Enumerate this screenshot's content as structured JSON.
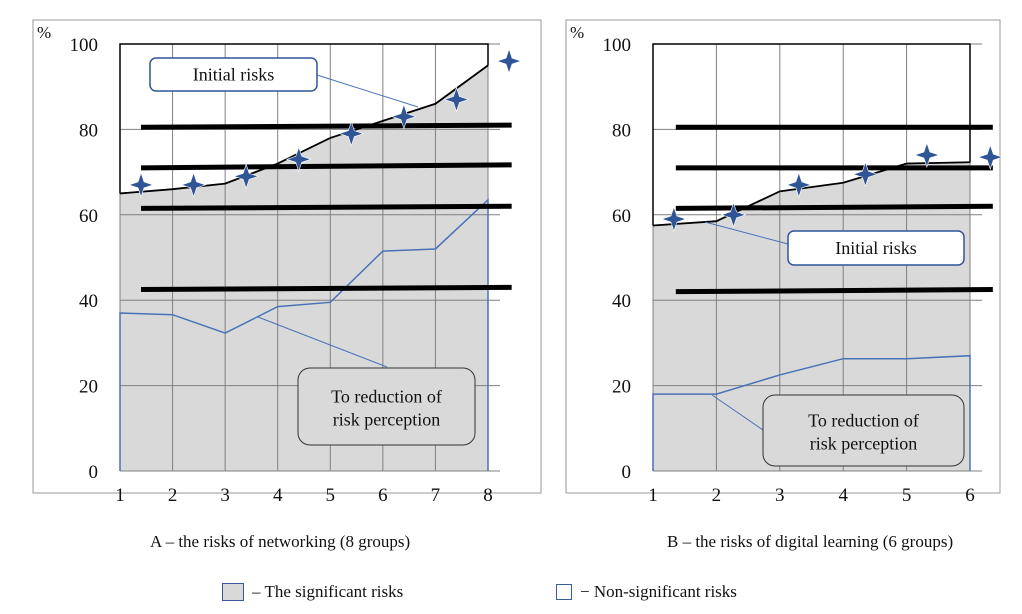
{
  "chart_data": [
    {
      "type": "area",
      "caption": "A – the risks of networking (8 groups)",
      "ylabel": "%",
      "ylim": [
        0,
        100
      ],
      "yticks": [
        "0",
        "20",
        "40",
        "60",
        "80",
        "100"
      ],
      "xticks": [
        "1",
        "2",
        "3",
        "4",
        "5",
        "6",
        "7",
        "8"
      ],
      "x": [
        1,
        2,
        3,
        4,
        5,
        6,
        7,
        8
      ],
      "initial_risks": [
        65,
        66,
        67.3,
        72,
        78,
        82,
        86,
        95
      ],
      "reduced_risks": [
        37,
        36.6,
        32.3,
        38.5,
        39.5,
        51.5,
        52,
        63.5
      ],
      "star_markers": {
        "x": [
          1.4,
          2.4,
          3.4,
          4.4,
          5.4,
          6.4,
          7.4,
          8.4
        ],
        "y": [
          67,
          67,
          69,
          73,
          79,
          83,
          87,
          96
        ]
      },
      "threshold_lines": [
        [
          80.5,
          81
        ],
        [
          71,
          71.7
        ],
        [
          61.5,
          62
        ],
        [
          42.5,
          43
        ]
      ],
      "threshold_x": [
        1.4,
        8.45
      ],
      "annotations": {
        "initial": "Initial risks",
        "reduction_1": "To reduction of",
        "reduction_2": "risk perception"
      }
    },
    {
      "type": "area",
      "caption": "B – the risks of digital learning (6 groups)",
      "ylabel": "%",
      "ylim": [
        0,
        100
      ],
      "yticks": [
        "0",
        "20",
        "40",
        "60",
        "80",
        "100"
      ],
      "xticks": [
        "1",
        "2",
        "3",
        "4",
        "5",
        "6"
      ],
      "x": [
        1,
        2,
        3,
        4,
        5,
        6
      ],
      "initial_risks": [
        57.5,
        58.5,
        65.5,
        67.5,
        72,
        72.3
      ],
      "reduced_risks": [
        18,
        18,
        22.5,
        26.3,
        26.3,
        27
      ],
      "star_markers": {
        "x": [
          1.33,
          2.27,
          3.3,
          4.35,
          5.32,
          6.32
        ],
        "y": [
          59,
          60,
          67,
          69.5,
          74,
          73.5
        ]
      },
      "threshold_lines": [
        [
          80.5,
          80.5
        ],
        [
          71,
          71
        ],
        [
          61.5,
          62
        ],
        [
          42,
          42.5
        ]
      ],
      "threshold_x": [
        1.36,
        6.36
      ],
      "annotations": {
        "initial": "Initial risks",
        "reduction_1": "To reduction of",
        "reduction_2": "risk perception"
      }
    }
  ],
  "legend": {
    "significant": "–  The significant risks",
    "non_significant": "−  Non-significant risks"
  },
  "colors": {
    "fill": "#d9d9d9",
    "blue": "#4a72b8",
    "star": "#2f5597",
    "black": "#000000"
  }
}
